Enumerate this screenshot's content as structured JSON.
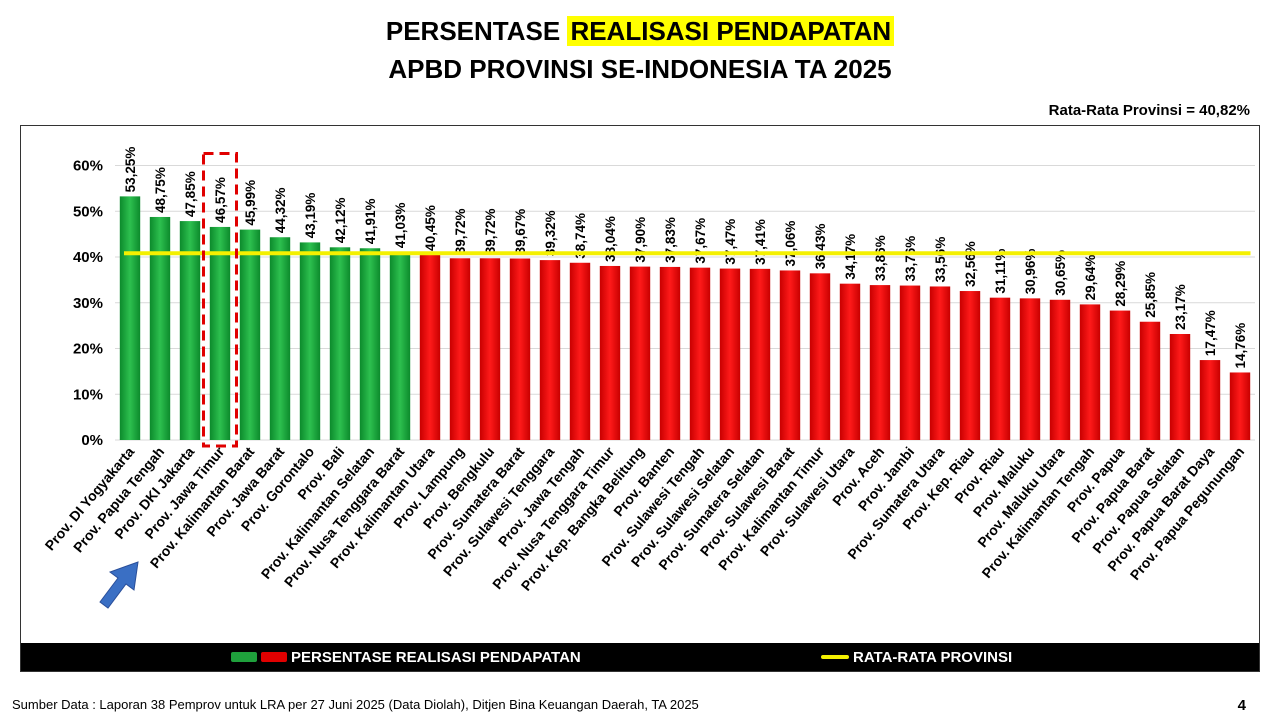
{
  "title_line1_prefix": "PERSENTASE ",
  "title_line1_highlight": "REALISASI PENDAPATAN",
  "title_line2": "APBD PROVINSI SE-INDONESIA TA 2025",
  "average_note": "Rata-Rata Provinsi = 40,82%",
  "legend": {
    "bars_label": "PERSENTASE REALISASI PENDAPATAN",
    "line_label": "RATA-RATA PROVINSI"
  },
  "source": "Sumber Data : Laporan 38 Pemprov untuk LRA per 27 Juni 2025 (Data Diolah), Ditjen Bina Keuangan Daerah, TA 2025",
  "page_number": "4",
  "colors": {
    "above_average": "#1fa03c",
    "below_average": "#e00000",
    "average_line": "#f4f000",
    "highlight_box": "#e00000",
    "arrow": "#3a6fc4"
  },
  "icons": [
    "arrow-icon"
  ],
  "chart_data": {
    "type": "bar",
    "categories": [
      "Prov. DI Yogyakarta",
      "Prov. Papua Tengah",
      "Prov. DKI Jakarta",
      "Prov. Jawa Timur",
      "Prov. Kalimantan Barat",
      "Prov. Jawa Barat",
      "Prov. Gorontalo",
      "Prov. Bali",
      "Prov. Kalimantan Selatan",
      "Prov. Nusa Tenggara Barat",
      "Prov. Kalimantan Utara",
      "Prov. Lampung",
      "Prov. Bengkulu",
      "Prov. Sumatera Barat",
      "Prov. Sulawesi Tenggara",
      "Prov. Jawa Tengah",
      "Prov. Nusa Tenggara Timur",
      "Prov. Kep. Bangka Belitung",
      "Prov. Banten",
      "Prov. Sulawesi Tengah",
      "Prov. Sulawesi Selatan",
      "Prov. Sumatera Selatan",
      "Prov. Sulawesi Barat",
      "Prov. Kalimantan Timur",
      "Prov. Sulawesi Utara",
      "Prov. Aceh",
      "Prov. Jambi",
      "Prov. Sumatera Utara",
      "Prov. Kep. Riau",
      "Prov. Riau",
      "Prov. Maluku",
      "Prov. Maluku Utara",
      "Prov. Kalimantan Tengah",
      "Prov. Papua",
      "Prov. Papua Barat",
      "Prov. Papua Selatan",
      "Prov. Papua Barat Daya",
      "Prov. Papua Pegunungan"
    ],
    "values": [
      53.25,
      48.75,
      47.85,
      46.57,
      45.99,
      44.32,
      43.19,
      42.12,
      41.91,
      41.03,
      40.45,
      39.72,
      39.72,
      39.67,
      39.32,
      38.74,
      38.04,
      37.9,
      37.83,
      37.67,
      37.47,
      37.41,
      37.06,
      36.43,
      34.17,
      33.86,
      33.76,
      33.56,
      32.56,
      31.11,
      30.96,
      30.65,
      29.64,
      28.29,
      25.85,
      23.17,
      17.47,
      14.76
    ],
    "value_labels": [
      "53,25%",
      "48,75%",
      "47,85%",
      "46,57%",
      "45,99%",
      "44,32%",
      "43,19%",
      "42,12%",
      "41,91%",
      "41,03%",
      "40,45%",
      "39,72%",
      "39,72%",
      "39,67%",
      "39,32%",
      "38,74%",
      "38,04%",
      "37,90%",
      "37,83%",
      "37,67%",
      "37,47%",
      "37,41%",
      "37,06%",
      "36,43%",
      "34,17%",
      "33,86%",
      "33,76%",
      "33,56%",
      "32,56%",
      "31,11%",
      "30,96%",
      "30,65%",
      "29,64%",
      "28,29%",
      "25,85%",
      "23,17%",
      "17,47%",
      "14,76%"
    ],
    "green_count": 10,
    "average": 40.82,
    "highlighted_category": "Prov. Jawa Timur",
    "yticks": [
      "0%",
      "10%",
      "20%",
      "30%",
      "40%",
      "50%",
      "60%"
    ],
    "ylim": [
      0,
      60
    ],
    "grid": true
  }
}
